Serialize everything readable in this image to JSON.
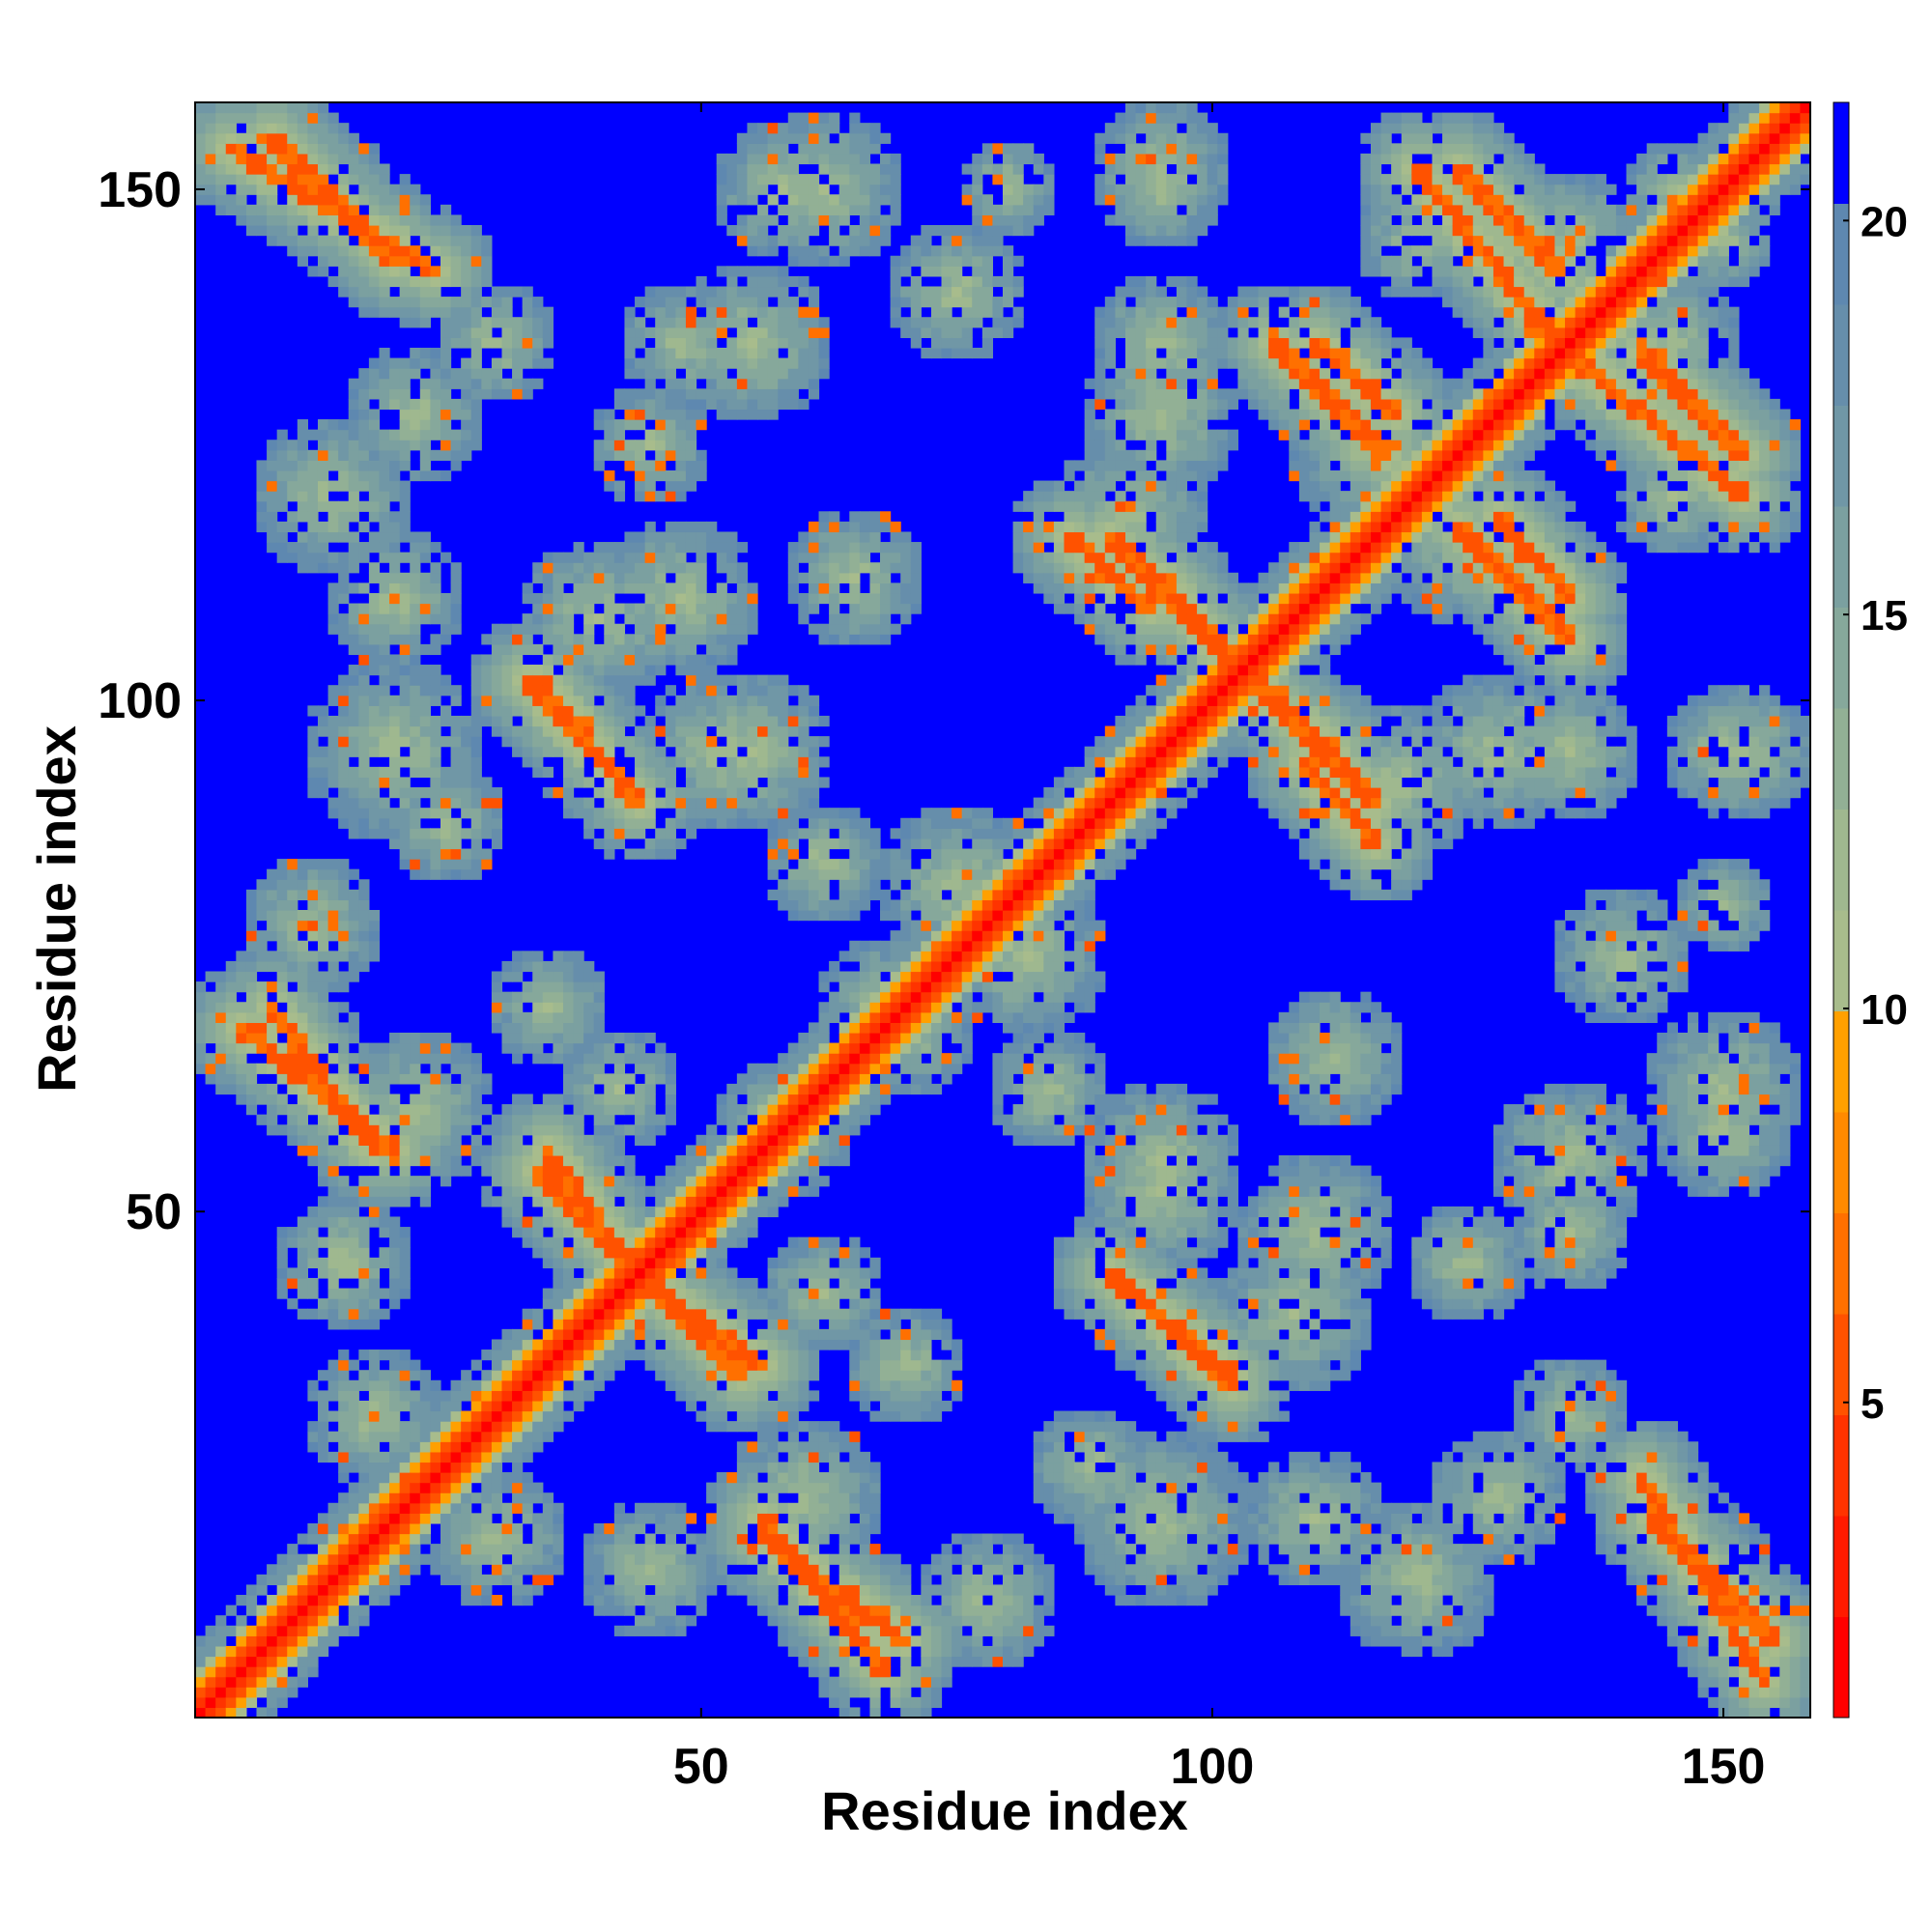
{
  "chart_data": {
    "type": "heatmap",
    "title": "",
    "xlabel": "Residue index",
    "ylabel": "Residue index",
    "n_residues": 158,
    "xlim": [
      1,
      158
    ],
    "ylim": [
      1,
      158
    ],
    "x_ticks": [
      50,
      100,
      150
    ],
    "y_ticks": [
      50,
      100,
      150
    ],
    "colorbar": {
      "ticks": [
        5,
        10,
        15,
        20
      ],
      "range": [
        1,
        21.5
      ],
      "colors": [
        "#ff0000",
        "#ff1a00",
        "#ff3300",
        "#ff5200",
        "#ff7000",
        "#ff8a00",
        "#ffa000",
        "#a8bc8c",
        "#9fb88f",
        "#92b095",
        "#86a89b",
        "#7ba0a0",
        "#7097a6",
        "#668eab",
        "#5e88b0",
        "#0000ff"
      ]
    },
    "colors": {
      "background_max": "#0000ff",
      "diagonal": "#ff0000",
      "contact": "#ff8c00",
      "shell": "#9fb88f"
    },
    "description_of_structure": {
      "diagonal": [
        [
          1,
          1
        ],
        [
          158,
          158
        ]
      ],
      "contact_segments_lower": [
        [
          [
            4,
            154
          ],
          [
            24,
            142
          ]
        ],
        [
          [
            5,
            68
          ],
          [
            20,
            56
          ]
        ],
        [
          [
            34,
            54
          ],
          [
            44,
            44
          ]
        ],
        [
          [
            33,
            102
          ],
          [
            44,
            90
          ]
        ],
        [
          [
            46,
            42
          ],
          [
            56,
            35
          ]
        ],
        [
          [
            56,
            18
          ],
          [
            70,
            8
          ]
        ],
        [
          [
            91,
            43
          ],
          [
            102,
            34
          ]
        ],
        [
          [
            104,
            102
          ],
          [
            116,
            90
          ]
        ],
        [
          [
            95,
            112
          ],
          [
            102,
            103
          ]
        ],
        [
          [
            86,
            116
          ],
          [
            94,
            109
          ]
        ]
      ],
      "contact_segments_upper": [
        [
          [
            124,
            152
          ],
          [
            134,
            142
          ]
        ],
        [
          [
            136,
            133
          ],
          [
            152,
            120
          ]
        ],
        [
          [
            143,
            20
          ],
          [
            155,
            8
          ]
        ],
        [
          [
            110,
            135
          ],
          [
            118,
            128
          ]
        ],
        [
          [
            124,
            117
          ],
          [
            135,
            106
          ]
        ]
      ]
    }
  }
}
